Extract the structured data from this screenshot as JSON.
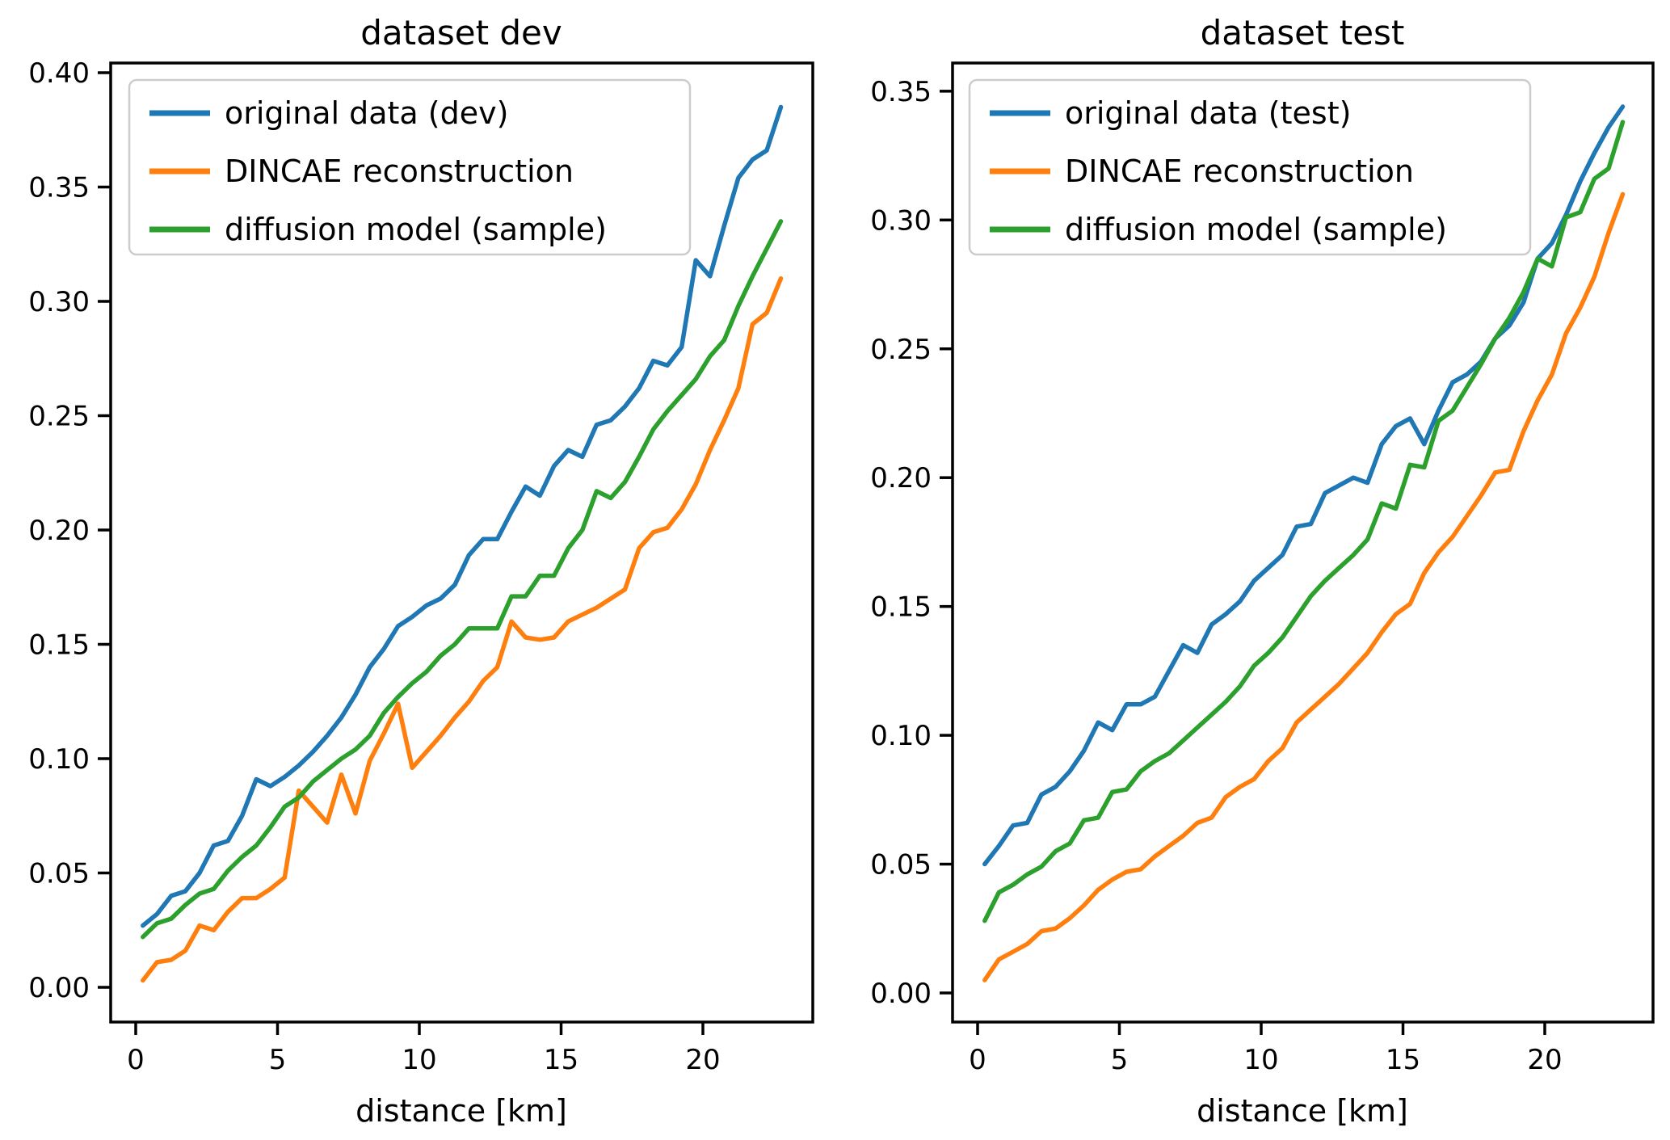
{
  "figure": {
    "background": "#ffffff"
  },
  "colors": {
    "original": "#1f77b4",
    "dincae": "#ff7f0e",
    "diffusion": "#2ca02c",
    "spine": "#000000",
    "legend_border": "#cccccc",
    "legend_fill": "#ffffff"
  },
  "chart_data": [
    {
      "type": "line",
      "title": "dataset dev",
      "xlabel": "distance [km]",
      "ylabel": "",
      "grid": false,
      "legend_position": "upper left",
      "xlim": [
        -0.875,
        23.875
      ],
      "ylim": [
        -0.015,
        0.404
      ],
      "xticks": [
        0,
        5,
        10,
        15,
        20
      ],
      "xtick_labels": [
        "0",
        "5",
        "10",
        "15",
        "20"
      ],
      "yticks": [
        0.0,
        0.05,
        0.1,
        0.15,
        0.2,
        0.25,
        0.3,
        0.35,
        0.4
      ],
      "ytick_labels": [
        "0.00",
        "0.05",
        "0.10",
        "0.15",
        "0.20",
        "0.25",
        "0.30",
        "0.35",
        "0.40"
      ],
      "x": [
        0.25,
        0.75,
        1.25,
        1.75,
        2.25,
        2.75,
        3.25,
        3.75,
        4.25,
        4.75,
        5.25,
        5.75,
        6.25,
        6.75,
        7.25,
        7.75,
        8.25,
        8.75,
        9.25,
        9.75,
        10.25,
        10.75,
        11.25,
        11.75,
        12.25,
        12.75,
        13.25,
        13.75,
        14.25,
        14.75,
        15.25,
        15.75,
        16.25,
        16.75,
        17.25,
        17.75,
        18.25,
        18.75,
        19.25,
        19.75,
        20.25,
        20.75,
        21.25,
        21.75,
        22.25,
        22.75
      ],
      "series": [
        {
          "name": "original data (dev)",
          "color_key": "original",
          "values": [
            0.027,
            0.032,
            0.04,
            0.042,
            0.05,
            0.062,
            0.064,
            0.075,
            0.091,
            0.088,
            0.092,
            0.097,
            0.103,
            0.11,
            0.118,
            0.128,
            0.14,
            0.148,
            0.158,
            0.162,
            0.167,
            0.17,
            0.176,
            0.189,
            0.196,
            0.196,
            0.208,
            0.219,
            0.215,
            0.228,
            0.235,
            0.232,
            0.246,
            0.248,
            0.254,
            0.262,
            0.274,
            0.272,
            0.28,
            0.318,
            0.311,
            0.333,
            0.354,
            0.362,
            0.366,
            0.385
          ]
        },
        {
          "name": "DINCAE reconstruction",
          "color_key": "dincae",
          "values": [
            0.003,
            0.011,
            0.012,
            0.016,
            0.027,
            0.025,
            0.033,
            0.039,
            0.039,
            0.043,
            0.048,
            0.086,
            0.079,
            0.072,
            0.093,
            0.076,
            0.099,
            0.111,
            0.124,
            0.096,
            0.103,
            0.11,
            0.118,
            0.125,
            0.134,
            0.14,
            0.16,
            0.153,
            0.152,
            0.153,
            0.16,
            0.163,
            0.166,
            0.17,
            0.174,
            0.192,
            0.199,
            0.201,
            0.209,
            0.22,
            0.235,
            0.248,
            0.262,
            0.29,
            0.295,
            0.31
          ]
        },
        {
          "name": "diffusion model (sample)",
          "color_key": "diffusion",
          "values": [
            0.022,
            0.028,
            0.03,
            0.036,
            0.041,
            0.043,
            0.051,
            0.057,
            0.062,
            0.07,
            0.079,
            0.083,
            0.09,
            0.095,
            0.1,
            0.104,
            0.11,
            0.12,
            0.127,
            0.133,
            0.138,
            0.145,
            0.15,
            0.157,
            0.157,
            0.157,
            0.171,
            0.171,
            0.18,
            0.18,
            0.192,
            0.2,
            0.217,
            0.214,
            0.221,
            0.232,
            0.244,
            0.252,
            0.259,
            0.266,
            0.276,
            0.283,
            0.298,
            0.311,
            0.323,
            0.335
          ]
        }
      ]
    },
    {
      "type": "line",
      "title": "dataset test",
      "xlabel": "distance [km]",
      "ylabel": "",
      "grid": false,
      "legend_position": "upper left",
      "xlim": [
        -0.875,
        23.875
      ],
      "ylim": [
        -0.011,
        0.36
      ],
      "xticks": [
        0,
        5,
        10,
        15,
        20
      ],
      "xtick_labels": [
        "0",
        "5",
        "10",
        "15",
        "20"
      ],
      "yticks": [
        0.0,
        0.05,
        0.1,
        0.15,
        0.2,
        0.25,
        0.3,
        0.35
      ],
      "ytick_labels": [
        "0.00",
        "0.05",
        "0.10",
        "0.15",
        "0.20",
        "0.25",
        "0.30",
        "0.35"
      ],
      "x": [
        0.25,
        0.75,
        1.25,
        1.75,
        2.25,
        2.75,
        3.25,
        3.75,
        4.25,
        4.75,
        5.25,
        5.75,
        6.25,
        6.75,
        7.25,
        7.75,
        8.25,
        8.75,
        9.25,
        9.75,
        10.25,
        10.75,
        11.25,
        11.75,
        12.25,
        12.75,
        13.25,
        13.75,
        14.25,
        14.75,
        15.25,
        15.75,
        16.25,
        16.75,
        17.25,
        17.75,
        18.25,
        18.75,
        19.25,
        19.75,
        20.25,
        20.75,
        21.25,
        21.75,
        22.25,
        22.75
      ],
      "series": [
        {
          "name": "original data (test)",
          "color_key": "original",
          "values": [
            0.05,
            0.057,
            0.065,
            0.066,
            0.077,
            0.08,
            0.086,
            0.094,
            0.105,
            0.102,
            0.112,
            0.112,
            0.115,
            0.125,
            0.135,
            0.132,
            0.143,
            0.147,
            0.152,
            0.16,
            0.165,
            0.17,
            0.181,
            0.182,
            0.194,
            0.197,
            0.2,
            0.198,
            0.213,
            0.22,
            0.223,
            0.213,
            0.226,
            0.237,
            0.24,
            0.245,
            0.254,
            0.259,
            0.268,
            0.285,
            0.291,
            0.302,
            0.315,
            0.326,
            0.336,
            0.344
          ]
        },
        {
          "name": "DINCAE reconstruction",
          "color_key": "dincae",
          "values": [
            0.005,
            0.013,
            0.016,
            0.019,
            0.024,
            0.025,
            0.029,
            0.034,
            0.04,
            0.044,
            0.047,
            0.048,
            0.053,
            0.057,
            0.061,
            0.066,
            0.068,
            0.076,
            0.08,
            0.083,
            0.09,
            0.095,
            0.105,
            0.11,
            0.115,
            0.12,
            0.126,
            0.132,
            0.14,
            0.147,
            0.151,
            0.163,
            0.171,
            0.177,
            0.185,
            0.193,
            0.202,
            0.203,
            0.218,
            0.23,
            0.24,
            0.256,
            0.266,
            0.278,
            0.295,
            0.31
          ]
        },
        {
          "name": "diffusion model (sample)",
          "color_key": "diffusion",
          "values": [
            0.028,
            0.039,
            0.042,
            0.046,
            0.049,
            0.055,
            0.058,
            0.067,
            0.068,
            0.078,
            0.079,
            0.086,
            0.09,
            0.093,
            0.098,
            0.103,
            0.108,
            0.113,
            0.119,
            0.127,
            0.132,
            0.138,
            0.146,
            0.154,
            0.16,
            0.165,
            0.17,
            0.176,
            0.19,
            0.188,
            0.205,
            0.204,
            0.222,
            0.226,
            0.235,
            0.244,
            0.254,
            0.262,
            0.272,
            0.285,
            0.282,
            0.301,
            0.303,
            0.316,
            0.32,
            0.338
          ]
        }
      ]
    }
  ]
}
